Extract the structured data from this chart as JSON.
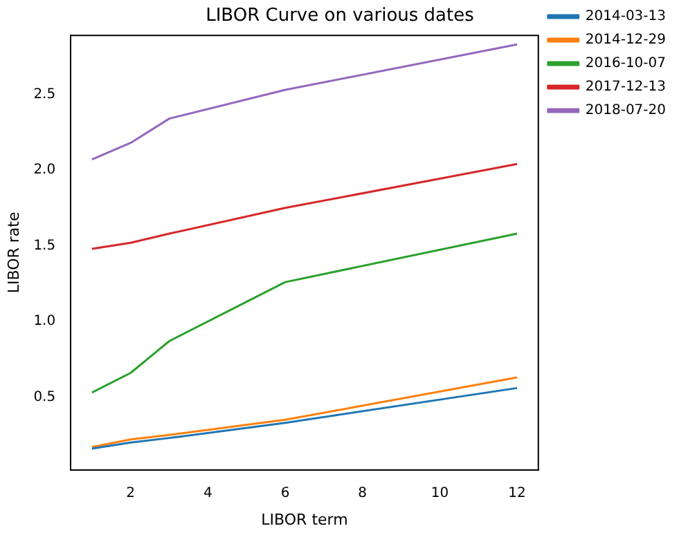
{
  "chart_data": {
    "type": "line",
    "title": "LIBOR Curve on various dates",
    "xlabel": "LIBOR term",
    "ylabel": "LIBOR rate",
    "x": [
      1,
      2,
      3,
      6,
      12
    ],
    "series": [
      {
        "name": "2014-03-13",
        "color": "#1f77b4",
        "values": [
          0.16,
          0.2,
          0.23,
          0.33,
          0.56
        ]
      },
      {
        "name": "2014-12-29",
        "color": "#ff7f0e",
        "values": [
          0.17,
          0.22,
          0.25,
          0.35,
          0.63
        ]
      },
      {
        "name": "2016-10-07",
        "color": "#2ca02c",
        "values": [
          0.53,
          0.66,
          0.87,
          1.26,
          1.58
        ]
      },
      {
        "name": "2017-12-13",
        "color": "#d62728",
        "values": [
          1.48,
          1.52,
          1.58,
          1.75,
          2.04
        ]
      },
      {
        "name": "2018-07-20",
        "color": "#9467bd",
        "values": [
          2.07,
          2.18,
          2.34,
          2.53,
          2.83
        ]
      }
    ],
    "xlim": [
      0.45,
      12.55
    ],
    "xticks": [
      2,
      4,
      6,
      8,
      10,
      12
    ],
    "ylim": [
      0.02,
      2.89
    ],
    "yticks": [
      {
        "value": 0.5,
        "label": "0.5"
      },
      {
        "value": 1,
        "label": "1.0"
      },
      {
        "value": 1.5,
        "label": "1.5"
      },
      {
        "value": 2,
        "label": "2.0"
      },
      {
        "value": 2.5,
        "label": "2.5"
      }
    ],
    "grid": false,
    "legend": "top right",
    "marker": "none",
    "line_style": "solid"
  }
}
